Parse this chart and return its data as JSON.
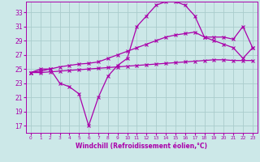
{
  "xlabel": "Windchill (Refroidissement éolien,°C)",
  "xlim": [
    -0.5,
    23.5
  ],
  "ylim": [
    16,
    34.5
  ],
  "yticks": [
    17,
    19,
    21,
    23,
    25,
    27,
    29,
    31,
    33
  ],
  "xticks": [
    0,
    1,
    2,
    3,
    4,
    5,
    6,
    7,
    8,
    9,
    10,
    11,
    12,
    13,
    14,
    15,
    16,
    17,
    18,
    19,
    20,
    21,
    22,
    23
  ],
  "bg_color": "#cce8e8",
  "grid_color": "#aacccc",
  "line_color": "#aa00aa",
  "line1_x": [
    0,
    1,
    2,
    3,
    4,
    5,
    6,
    7,
    8,
    9,
    10,
    11,
    12,
    13,
    14,
    15,
    16,
    17,
    18,
    19,
    20,
    21,
    22,
    23
  ],
  "line1_y": [
    24.5,
    25.0,
    25.0,
    23.0,
    22.5,
    21.5,
    17.0,
    21.0,
    24.0,
    25.5,
    26.5,
    31.0,
    32.5,
    34.0,
    34.5,
    34.5,
    34.0,
    32.5,
    29.5,
    29.0,
    28.5,
    28.0,
    26.5,
    28.0
  ],
  "line2_x": [
    0,
    1,
    2,
    3,
    4,
    5,
    6,
    7,
    8,
    9,
    10,
    11,
    12,
    13,
    14,
    15,
    16,
    17,
    18,
    19,
    20,
    21,
    22,
    23
  ],
  "line2_y": [
    24.5,
    24.7,
    25.0,
    25.3,
    25.5,
    25.7,
    25.8,
    26.0,
    26.5,
    27.0,
    27.5,
    28.0,
    28.5,
    29.0,
    29.5,
    29.8,
    30.0,
    30.2,
    29.5,
    29.5,
    29.5,
    29.2,
    31.0,
    28.0
  ],
  "line3_x": [
    0,
    1,
    2,
    3,
    4,
    5,
    6,
    7,
    8,
    9,
    10,
    11,
    12,
    13,
    14,
    15,
    16,
    17,
    18,
    19,
    20,
    21,
    22,
    23
  ],
  "line3_y": [
    24.5,
    24.5,
    24.6,
    24.7,
    24.8,
    24.9,
    25.0,
    25.1,
    25.2,
    25.3,
    25.4,
    25.5,
    25.6,
    25.7,
    25.8,
    25.9,
    26.0,
    26.1,
    26.2,
    26.3,
    26.3,
    26.2,
    26.2,
    26.2
  ]
}
